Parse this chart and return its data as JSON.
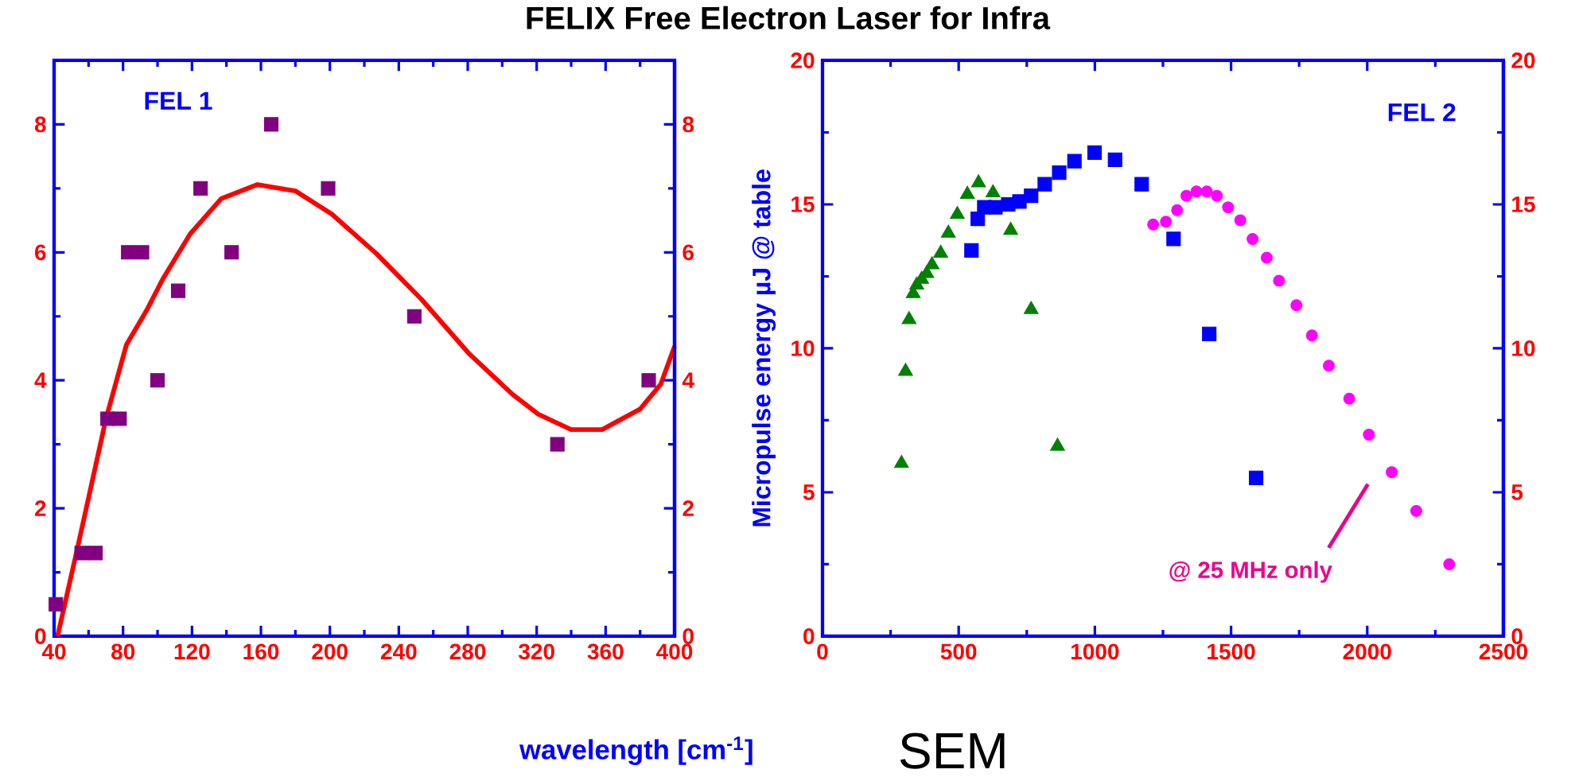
{
  "chart_data": [
    {
      "type": "scatter",
      "title": "FELIX Free Electron Laser for Infra",
      "xlim": [
        40,
        400
      ],
      "xticks": [
        40,
        80,
        120,
        160,
        200,
        240,
        280,
        320,
        360,
        400
      ],
      "ylim": [
        0,
        9
      ],
      "yticks": [
        0,
        2,
        4,
        6,
        8
      ],
      "y2lim": [
        0,
        9
      ],
      "y2ticks": [
        0,
        2,
        4,
        6,
        8
      ],
      "annotations": [
        "FEL 1"
      ],
      "series": [
        {
          "color": "#800080",
          "marker": "square",
          "x": [
            41,
            56,
            64,
            71,
            78,
            83,
            91,
            100,
            112,
            125,
            143,
            166,
            199,
            249,
            332,
            385
          ],
          "values": [
            0.5,
            1.3,
            1.3,
            3.4,
            3.4,
            6.0,
            6.0,
            4.0,
            5.4,
            7.0,
            6.0,
            8.0,
            7.0,
            5.0,
            3.0,
            4.0
          ]
        },
        {
          "type": "line",
          "color": "#ff0000",
          "marker": "none",
          "line_style": "solid",
          "x": [
            42,
            54,
            70,
            82,
            94,
            103,
            119,
            137,
            158,
            180,
            201,
            227,
            253,
            281,
            306,
            321,
            340,
            358,
            380,
            392,
            400
          ],
          "values": [
            0,
            1.43,
            3.39,
            4.56,
            5.11,
            5.58,
            6.29,
            6.84,
            7.06,
            6.96,
            6.6,
            5.98,
            5.27,
            4.41,
            3.78,
            3.47,
            3.23,
            3.23,
            3.55,
            3.94,
            4.53
          ]
        }
      ]
    },
    {
      "type": "scatter",
      "xlabel": "wavelength [cm$^{-1}$]",
      "ylabel": "Micropulse energy µJ @ table",
      "xlim": [
        0,
        2500
      ],
      "xticks": [
        0,
        500,
        1000,
        1500,
        2000,
        2500
      ],
      "ylim": [
        0,
        20
      ],
      "yticks": [
        0,
        5,
        10,
        15,
        20
      ],
      "y2lim": [
        0,
        20
      ],
      "y2ticks": [
        0,
        5,
        10,
        15,
        20
      ],
      "annotations": [
        "FEL 2",
        "SEM",
        "@ 25 MHz only"
      ],
      "series": [
        {
          "color": "#008000",
          "marker": "triangle",
          "x": [
            290,
            305,
            318,
            333,
            346,
            364,
            383,
            402,
            434,
            462,
            495,
            532,
            573,
            626,
            691,
            766,
            863
          ],
          "values": [
            6.0,
            9.2,
            11.0,
            11.9,
            12.2,
            12.4,
            12.6,
            12.9,
            13.3,
            14.0,
            14.65,
            15.35,
            15.75,
            15.4,
            14.1,
            11.35,
            6.6
          ]
        },
        {
          "color": "#0000ff",
          "marker": "square",
          "x": [
            547,
            570,
            594,
            635,
            682,
            723,
            766,
            816,
            869,
            925,
            999,
            1074,
            1172,
            1289,
            1420,
            1592
          ],
          "values": [
            13.4,
            14.5,
            14.9,
            14.9,
            15.0,
            15.1,
            15.3,
            15.7,
            16.1,
            16.5,
            16.8,
            16.55,
            15.7,
            13.8,
            10.5,
            5.5
          ]
        },
        {
          "color": "#ff00ff",
          "marker": "circle",
          "x": [
            1214,
            1261,
            1302,
            1336,
            1373,
            1411,
            1448,
            1489,
            1534,
            1579,
            1631,
            1676,
            1740,
            1797,
            1859,
            1934,
            2006,
            2090,
            2180,
            2301
          ],
          "values": [
            14.3,
            14.4,
            14.8,
            15.3,
            15.45,
            15.45,
            15.3,
            14.9,
            14.45,
            13.8,
            13.15,
            12.35,
            11.5,
            10.45,
            9.4,
            8.25,
            7.0,
            5.7,
            4.35,
            2.5
          ]
        }
      ]
    }
  ]
}
